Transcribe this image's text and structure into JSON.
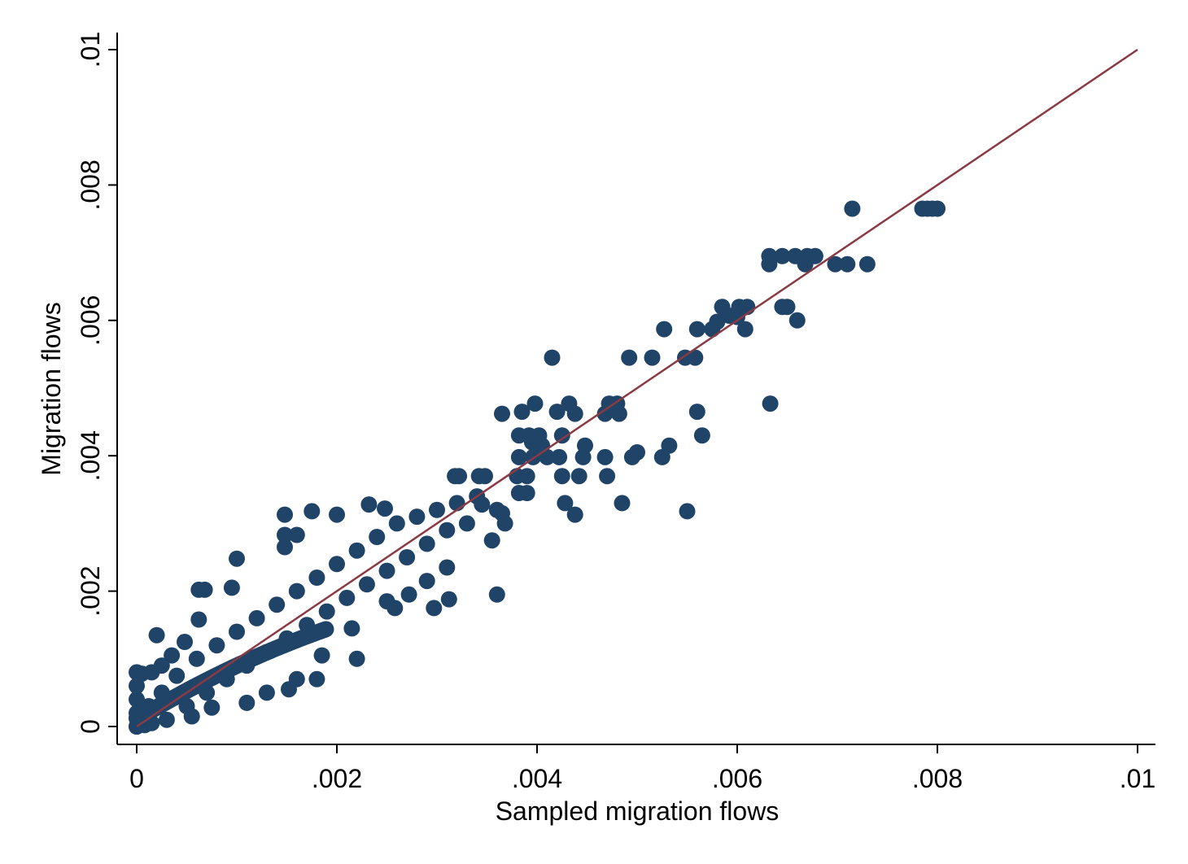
{
  "chart_data": {
    "type": "scatter",
    "title": "",
    "xlabel": "Sampled migration flows",
    "ylabel": "Migration flows",
    "xlim": [
      0,
      0.01
    ],
    "ylim": [
      0,
      0.01
    ],
    "xticks": [
      0,
      0.002,
      0.004,
      0.006,
      0.008,
      0.01
    ],
    "xtick_labels": [
      "0",
      ".002",
      ".004",
      ".006",
      ".008",
      ".01"
    ],
    "yticks": [
      0,
      0.002,
      0.004,
      0.006,
      0.008,
      0.01
    ],
    "ytick_labels": [
      "0",
      ".002",
      ".004",
      ".006",
      ".008",
      ".01"
    ],
    "grid": false,
    "legend": "none",
    "colors": {
      "points": "#1f4468",
      "line": "#8b3a44"
    },
    "reference_line": {
      "name": "",
      "x": [
        0,
        0.01
      ],
      "y": [
        0,
        0.01
      ]
    },
    "points": [
      [
        0.00785,
        0.00765
      ],
      [
        0.0079,
        0.00765
      ],
      [
        0.00795,
        0.00765
      ],
      [
        0.008,
        0.00765
      ],
      [
        0.00715,
        0.00765
      ],
      [
        0.00632,
        0.00695
      ],
      [
        0.00645,
        0.00695
      ],
      [
        0.00658,
        0.00695
      ],
      [
        0.0067,
        0.00695
      ],
      [
        0.00678,
        0.00695
      ],
      [
        0.00632,
        0.00683
      ],
      [
        0.00668,
        0.00683
      ],
      [
        0.00698,
        0.00683
      ],
      [
        0.0071,
        0.00683
      ],
      [
        0.0073,
        0.00683
      ],
      [
        0.00585,
        0.0062
      ],
      [
        0.00602,
        0.0062
      ],
      [
        0.0061,
        0.0062
      ],
      [
        0.00645,
        0.0062
      ],
      [
        0.0065,
        0.0062
      ],
      [
        0.00592,
        0.00607
      ],
      [
        0.006,
        0.00605
      ],
      [
        0.0066,
        0.006
      ],
      [
        0.0058,
        0.00598
      ],
      [
        0.00527,
        0.00587
      ],
      [
        0.0056,
        0.00587
      ],
      [
        0.00575,
        0.00587
      ],
      [
        0.00608,
        0.00587
      ],
      [
        0.00415,
        0.00545
      ],
      [
        0.00492,
        0.00545
      ],
      [
        0.00515,
        0.00545
      ],
      [
        0.00548,
        0.00545
      ],
      [
        0.00558,
        0.00545
      ],
      [
        0.00633,
        0.00477
      ],
      [
        0.00398,
        0.00477
      ],
      [
        0.00432,
        0.00477
      ],
      [
        0.0048,
        0.00477
      ],
      [
        0.00365,
        0.00462
      ],
      [
        0.00385,
        0.00465
      ],
      [
        0.0042,
        0.00465
      ],
      [
        0.00438,
        0.00462
      ],
      [
        0.00468,
        0.00462
      ],
      [
        0.00472,
        0.00477
      ],
      [
        0.00482,
        0.00462
      ],
      [
        0.0056,
        0.00465
      ],
      [
        0.00382,
        0.0043
      ],
      [
        0.00392,
        0.0043
      ],
      [
        0.00402,
        0.0043
      ],
      [
        0.00425,
        0.0043
      ],
      [
        0.00565,
        0.0043
      ],
      [
        0.00395,
        0.0042
      ],
      [
        0.00405,
        0.00415
      ],
      [
        0.00448,
        0.00415
      ],
      [
        0.00532,
        0.00415
      ],
      [
        0.00382,
        0.00398
      ],
      [
        0.00396,
        0.00398
      ],
      [
        0.0041,
        0.00398
      ],
      [
        0.00422,
        0.00398
      ],
      [
        0.00446,
        0.00398
      ],
      [
        0.00468,
        0.00398
      ],
      [
        0.005,
        0.00405
      ],
      [
        0.00495,
        0.00398
      ],
      [
        0.00525,
        0.00398
      ],
      [
        0.00318,
        0.0037
      ],
      [
        0.00322,
        0.0037
      ],
      [
        0.00342,
        0.0037
      ],
      [
        0.00348,
        0.0037
      ],
      [
        0.0038,
        0.0037
      ],
      [
        0.0039,
        0.0037
      ],
      [
        0.00425,
        0.0037
      ],
      [
        0.00442,
        0.0037
      ],
      [
        0.0047,
        0.0037
      ],
      [
        0.00382,
        0.00345
      ],
      [
        0.0039,
        0.00345
      ],
      [
        0.00232,
        0.00328
      ],
      [
        0.00248,
        0.00322
      ],
      [
        0.00428,
        0.0033
      ],
      [
        0.00485,
        0.0033
      ],
      [
        0.00438,
        0.00313
      ],
      [
        0.0055,
        0.00318
      ],
      [
        0.00148,
        0.00313
      ],
      [
        0.00175,
        0.00318
      ],
      [
        0.002,
        0.00313
      ],
      [
        0.00148,
        0.00283
      ],
      [
        0.0016,
        0.00283
      ],
      [
        0.00148,
        0.00265
      ],
      [
        0.00345,
        0.00328
      ],
      [
        0.00365,
        0.00315
      ],
      [
        0.00368,
        0.003
      ],
      [
        0.00355,
        0.00275
      ],
      [
        0.00062,
        0.00202
      ],
      [
        0.00068,
        0.00202
      ],
      [
        0.001,
        0.00248
      ],
      [
        0.00095,
        0.00205
      ],
      [
        0.0036,
        0.00195
      ],
      [
        0.00272,
        0.00195
      ],
      [
        0.0029,
        0.00215
      ],
      [
        0.00297,
        0.00175
      ],
      [
        0.00312,
        0.00188
      ],
      [
        0.00258,
        0.00175
      ],
      [
        0.0025,
        0.00185
      ],
      [
        0.0031,
        0.00235
      ],
      [
        0.0022,
        0.001
      ],
      [
        0.00215,
        0.00145
      ],
      [
        0.00185,
        0.00105
      ],
      [
        0.0018,
        0.0007
      ],
      [
        0.0016,
        0.0007
      ],
      [
        0.00152,
        0.00055
      ],
      [
        0.0013,
        0.0005
      ],
      [
        0.0011,
        0.00035
      ],
      [
        0.00075,
        0.00028
      ],
      [
        0.00055,
        0.00015
      ],
      [
        0.0003,
        0.0001
      ],
      [
        0.00015,
        5e-05
      ],
      [
        8e-05,
        2e-05
      ],
      [
        0.0002,
        0.00135
      ],
      [
        0.00062,
        0.00158
      ],
      [
        0.00048,
        0.00125
      ],
      [
        0.00035,
        0.00105
      ],
      [
        0.00025,
        0.0009
      ],
      [
        0.00015,
        0.0008
      ],
      [
        5e-05,
        0.00078
      ],
      [
        0,
        0.0008
      ],
      [
        0,
        0.0006
      ],
      [
        0,
        0.0004
      ],
      [
        0,
        0.0002
      ],
      [
        0,
        0
      ],
      [
        0.00012,
        0.0003
      ],
      [
        0.00025,
        0.0005
      ],
      [
        0.0004,
        0.00075
      ],
      [
        0.0006,
        0.001
      ],
      [
        0.0008,
        0.0012
      ],
      [
        0.001,
        0.0014
      ],
      [
        0.0012,
        0.0016
      ],
      [
        0.0014,
        0.0018
      ],
      [
        0.0016,
        0.002
      ],
      [
        0.0018,
        0.0022
      ],
      [
        0.002,
        0.0024
      ],
      [
        0.0022,
        0.0026
      ],
      [
        0.0024,
        0.0028
      ],
      [
        0.0026,
        0.003
      ],
      [
        0.0028,
        0.0031
      ],
      [
        0.003,
        0.0032
      ],
      [
        0.0032,
        0.0033
      ],
      [
        0.0034,
        0.0034
      ],
      [
        0.0036,
        0.0032
      ],
      [
        0.0005,
        0.0003
      ],
      [
        0.0007,
        0.0005
      ],
      [
        0.0009,
        0.0007
      ],
      [
        0.0011,
        0.0009
      ],
      [
        0.0013,
        0.0011
      ],
      [
        0.0015,
        0.0013
      ],
      [
        0.0017,
        0.0015
      ],
      [
        0.0019,
        0.0017
      ],
      [
        0.0021,
        0.0019
      ],
      [
        0.0023,
        0.0021
      ],
      [
        0.0025,
        0.0023
      ],
      [
        0.0027,
        0.0025
      ],
      [
        0.0029,
        0.0027
      ],
      [
        0.0031,
        0.0029
      ],
      [
        0.0033,
        0.003
      ]
    ]
  }
}
